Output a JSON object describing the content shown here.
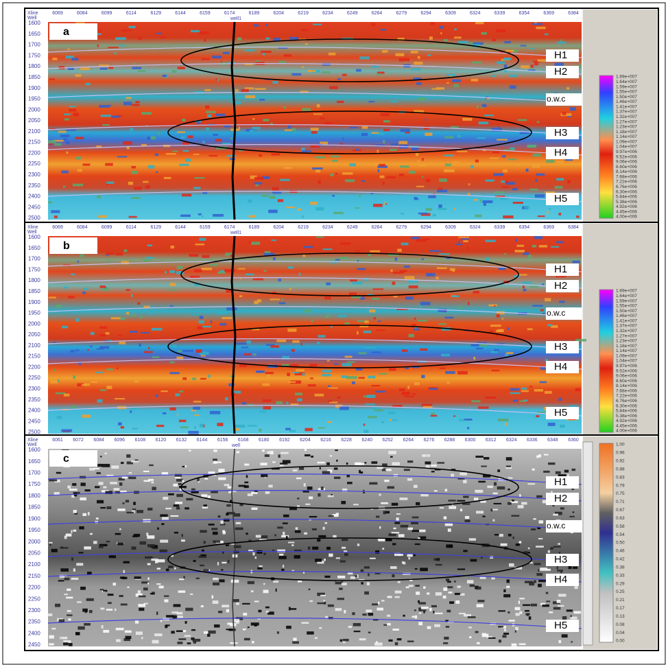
{
  "panels": [
    {
      "label": "a",
      "xline_title": "Xline",
      "well_title": "Well",
      "well": "well1",
      "xlines": [
        "6069",
        "6084",
        "6099",
        "6114",
        "6129",
        "6144",
        "6159",
        "6174",
        "6189",
        "6204",
        "6219",
        "6234",
        "6249",
        "6264",
        "6279",
        "6294",
        "6309",
        "6324",
        "6339",
        "6354",
        "6369",
        "6384"
      ],
      "depths": [
        "1600",
        "1650",
        "1700",
        "1750",
        "1800",
        "1850",
        "1900",
        "1950",
        "2000",
        "2050",
        "2100",
        "2150",
        "2200",
        "2250",
        "2300",
        "2350",
        "2400",
        "2450",
        "2500"
      ],
      "horizons": [
        "H1",
        "H2",
        "o.w.c",
        "H3",
        "H4",
        "H5"
      ],
      "colorbar": [
        "1.69e+007",
        "1.64e+007",
        "1.59e+007",
        "1.55e+007",
        "1.50e+007",
        "1.46e+007",
        "1.41e+007",
        "1.37e+007",
        "1.32e+007",
        "1.27e+007",
        "1.23e+007",
        "1.18e+007",
        "1.14e+007",
        "1.09e+007",
        "1.04e+007",
        "9.97e+006",
        "9.52e+006",
        "9.06e+006",
        "8.60e+006",
        "8.14e+006",
        "7.68e+006",
        "7.22e+006",
        "6.76e+006",
        "6.30e+006",
        "5.84e+006",
        "5.38e+006",
        "4.92e+006",
        "4.45e+006",
        "4.00e+006"
      ]
    },
    {
      "label": "b",
      "xline_title": "Xline",
      "well_title": "Well",
      "well": "well1",
      "xlines": [
        "6069",
        "6084",
        "6099",
        "6114",
        "6129",
        "6144",
        "6159",
        "6174",
        "6189",
        "6204",
        "6219",
        "6234",
        "6249",
        "6264",
        "6279",
        "6294",
        "6309",
        "6324",
        "6339",
        "6354",
        "6369",
        "6384"
      ],
      "depths": [
        "1600",
        "1650",
        "1700",
        "1750",
        "1800",
        "1850",
        "1900",
        "1950",
        "2000",
        "2050",
        "2100",
        "2150",
        "2200",
        "2250",
        "2300",
        "2350",
        "2400",
        "2450",
        "2500"
      ],
      "horizons": [
        "H1",
        "H2",
        "o.w.c",
        "H3",
        "H4",
        "H5"
      ],
      "colorbar": [
        "1.69e+007",
        "1.64e+007",
        "1.59e+007",
        "1.55e+007",
        "1.50e+007",
        "1.46e+007",
        "1.41e+007",
        "1.37e+007",
        "1.32e+007",
        "1.27e+007",
        "1.23e+007",
        "1.18e+007",
        "1.14e+007",
        "1.09e+007",
        "1.04e+007",
        "9.97e+006",
        "9.52e+006",
        "9.06e+006",
        "8.60e+006",
        "8.14e+006",
        "7.68e+006",
        "7.22e+006",
        "6.76e+006",
        "6.30e+006",
        "5.84e+006",
        "5.38e+006",
        "4.92e+006",
        "4.45e+006",
        "4.00e+006"
      ]
    },
    {
      "label": "c",
      "xline_title": "Xline",
      "well_title": "Well",
      "well": "well",
      "xlines": [
        "6061",
        "6072",
        "6084",
        "6096",
        "6108",
        "6120",
        "6132",
        "6144",
        "6156",
        "6168",
        "6180",
        "6192",
        "6204",
        "6216",
        "6228",
        "6240",
        "6252",
        "6264",
        "6276",
        "6288",
        "6300",
        "6312",
        "6324",
        "6336",
        "6348",
        "6360"
      ],
      "depths": [
        "1600",
        "1650",
        "1700",
        "1750",
        "1800",
        "1850",
        "1900",
        "1950",
        "2000",
        "2050",
        "2100",
        "2150",
        "2200",
        "2250",
        "2300",
        "2350",
        "2400",
        "2450"
      ],
      "horizons": [
        "H1",
        "H2",
        "o.w.c",
        "H3",
        "H4",
        "H5"
      ],
      "colorbar": [
        "1.00",
        "0.96",
        "0.92",
        "0.88",
        "0.83",
        "0.79",
        "0.75",
        "0.71",
        "0.67",
        "0.63",
        "0.58",
        "0.54",
        "0.50",
        "0.46",
        "0.42",
        "0.38",
        "0.33",
        "0.29",
        "0.25",
        "0.21",
        "0.17",
        "0.13",
        "0.08",
        "0.04",
        "0.00"
      ]
    }
  ]
}
